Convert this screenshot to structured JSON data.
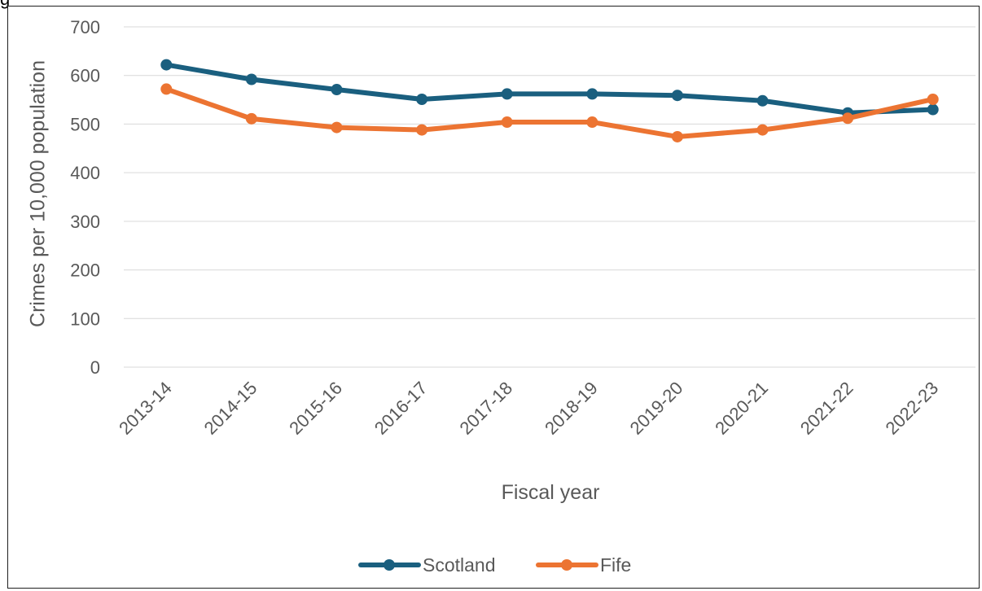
{
  "header_fragment": "g",
  "chart_data": {
    "type": "line",
    "title": "",
    "xlabel": "Fiscal year",
    "ylabel": "Crimes per 10,000 population",
    "categories": [
      "2013-14",
      "2014-15",
      "2015-16",
      "2016-17",
      "2017-18",
      "2018-19",
      "2019-20",
      "2020-21",
      "2021-22",
      "2022-23"
    ],
    "series": [
      {
        "name": "Scotland",
        "color": "#1a5f7f",
        "values": [
          622,
          592,
          571,
          551,
          562,
          562,
          559,
          548,
          523,
          530
        ]
      },
      {
        "name": "Fife",
        "color": "#ec7432",
        "values": [
          572,
          511,
          493,
          488,
          504,
          504,
          474,
          488,
          512,
          551
        ]
      }
    ],
    "yticks": [
      "0",
      "100",
      "200",
      "300",
      "400",
      "500",
      "600",
      "700"
    ],
    "ylim": [
      0,
      700
    ],
    "grid": true,
    "gridline_color": "#d9d9d9",
    "legend_position": "bottom"
  }
}
